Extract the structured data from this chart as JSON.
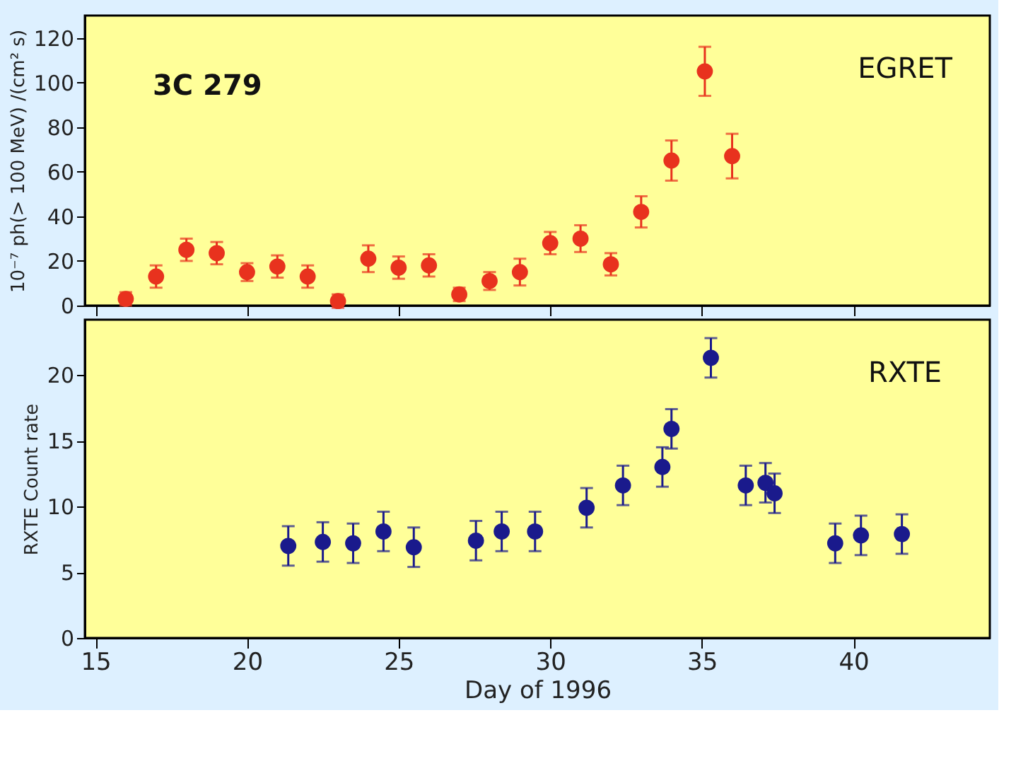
{
  "chart_data": [
    {
      "type": "scatter",
      "ylabel": "10⁻⁷ ph(> 100 MeV) /(cm² s)",
      "xlim": [
        14.65,
        44.5
      ],
      "xticks": [
        15,
        20,
        25,
        30,
        35,
        40
      ],
      "ylim": [
        0,
        130
      ],
      "yticks": [
        0,
        20,
        40,
        60,
        80,
        100,
        120
      ],
      "tick_labels": "y",
      "grid": false,
      "marker": "circle",
      "annotations": [
        "3C 279",
        "EGRET"
      ],
      "series": [
        {
          "color": "#e8321e",
          "x": [
            16,
            17,
            18,
            19,
            20,
            21,
            22,
            23,
            24,
            25,
            26,
            27,
            28,
            29,
            30,
            31,
            32,
            33,
            34,
            35.1,
            36
          ],
          "values": [
            3,
            13,
            25,
            23.5,
            15,
            17.5,
            13,
            2,
            21,
            17,
            18,
            5,
            11,
            15,
            28,
            30,
            18.5,
            42,
            65,
            105,
            67
          ],
          "errors": [
            3,
            5,
            5,
            5,
            4,
            5,
            5,
            3,
            6,
            5,
            5,
            3,
            4,
            6,
            5,
            6,
            5,
            7,
            9,
            11,
            10
          ]
        }
      ]
    },
    {
      "type": "scatter",
      "xlabel": "Day of 1996",
      "ylabel": "RXTE Count rate",
      "xlim": [
        14.65,
        44.5
      ],
      "xticks": [
        15,
        20,
        25,
        30,
        35,
        40
      ],
      "ylim": [
        0,
        24.2
      ],
      "yticks": [
        0,
        5,
        10,
        15,
        20
      ],
      "grid": false,
      "marker": "circle",
      "annotations": [
        "RXTE"
      ],
      "series": [
        {
          "color": "#1a1a8c",
          "x": [
            21.36,
            22.5,
            23.5,
            24.5,
            25.5,
            27.55,
            28.4,
            29.5,
            31.2,
            32.4,
            33.7,
            34.0,
            35.3,
            36.45,
            37.1,
            37.4,
            39.4,
            40.25,
            41.6
          ],
          "values": [
            7.0,
            7.3,
            7.2,
            8.1,
            6.9,
            7.4,
            8.1,
            8.1,
            9.9,
            11.6,
            13.0,
            15.9,
            21.3,
            11.6,
            11.8,
            11.0,
            7.2,
            7.8,
            7.9
          ],
          "errors": [
            1.5,
            1.5,
            1.5,
            1.5,
            1.5,
            1.5,
            1.5,
            1.5,
            1.5,
            1.5,
            1.5,
            1.5,
            1.5,
            1.5,
            1.5,
            1.5,
            1.5,
            1.5,
            1.5
          ]
        }
      ]
    }
  ]
}
